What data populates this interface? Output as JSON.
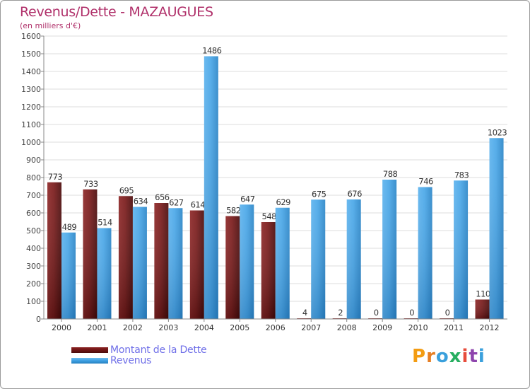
{
  "header": {
    "title": "Revenus/Dette - MAZAUGUES",
    "subtitle": "(en milliers d'€)"
  },
  "colors": {
    "dette": "#6e1414",
    "revenus": "#3d9fe2",
    "title": "#b0306a",
    "legend_text": "#6f6fe8"
  },
  "legend": {
    "position": "bottom-left",
    "items": [
      {
        "label": "Montant de la Dette",
        "color": "#6e1414"
      },
      {
        "label": "Revenus",
        "color": "#3d9fe2"
      }
    ]
  },
  "logo": {
    "letters": [
      {
        "ch": "P",
        "color": "#f39c12"
      },
      {
        "ch": "r",
        "color": "#e67e22"
      },
      {
        "ch": "o",
        "color": "#3aa0dc"
      },
      {
        "ch": "x",
        "color": "#27ae60"
      },
      {
        "ch": "i",
        "color": "#e74c3c"
      },
      {
        "ch": "t",
        "color": "#8e44ad"
      },
      {
        "ch": "i",
        "color": "#3aa0dc"
      }
    ]
  },
  "chart_data": {
    "type": "bar",
    "title": "Revenus/Dette - MAZAUGUES",
    "ylabel": "(en milliers d'€)",
    "xlabel": "",
    "ylim": [
      0,
      1600
    ],
    "yticks": [
      "0",
      "100",
      "200",
      "300",
      "400",
      "500",
      "600",
      "700",
      "800",
      "900",
      "1000",
      "1100",
      "1200",
      "1300",
      "1400",
      "1500",
      "1600"
    ],
    "grid": true,
    "categories": [
      "2000",
      "2001",
      "2002",
      "2003",
      "2004",
      "2005",
      "2006",
      "2007",
      "2008",
      "2009",
      "2010",
      "2011",
      "2012"
    ],
    "series": [
      {
        "name": "Montant de la Dette",
        "values": [
          773,
          733,
          695,
          656,
          614,
          582,
          548,
          4,
          2,
          0,
          0,
          0,
          110
        ]
      },
      {
        "name": "Revenus",
        "values": [
          489,
          514,
          634,
          627,
          1486,
          647,
          629,
          675,
          676,
          788,
          746,
          783,
          1023
        ]
      }
    ],
    "data_labels": [
      [
        "773",
        "733",
        "695",
        "656",
        "614",
        "582",
        "548",
        "4",
        "2",
        "0",
        "0",
        "0",
        "110"
      ],
      [
        "489",
        "514",
        "634",
        "627",
        "1486",
        "647",
        "629",
        "675",
        "676",
        "788",
        "746",
        "783",
        "1023"
      ]
    ]
  }
}
